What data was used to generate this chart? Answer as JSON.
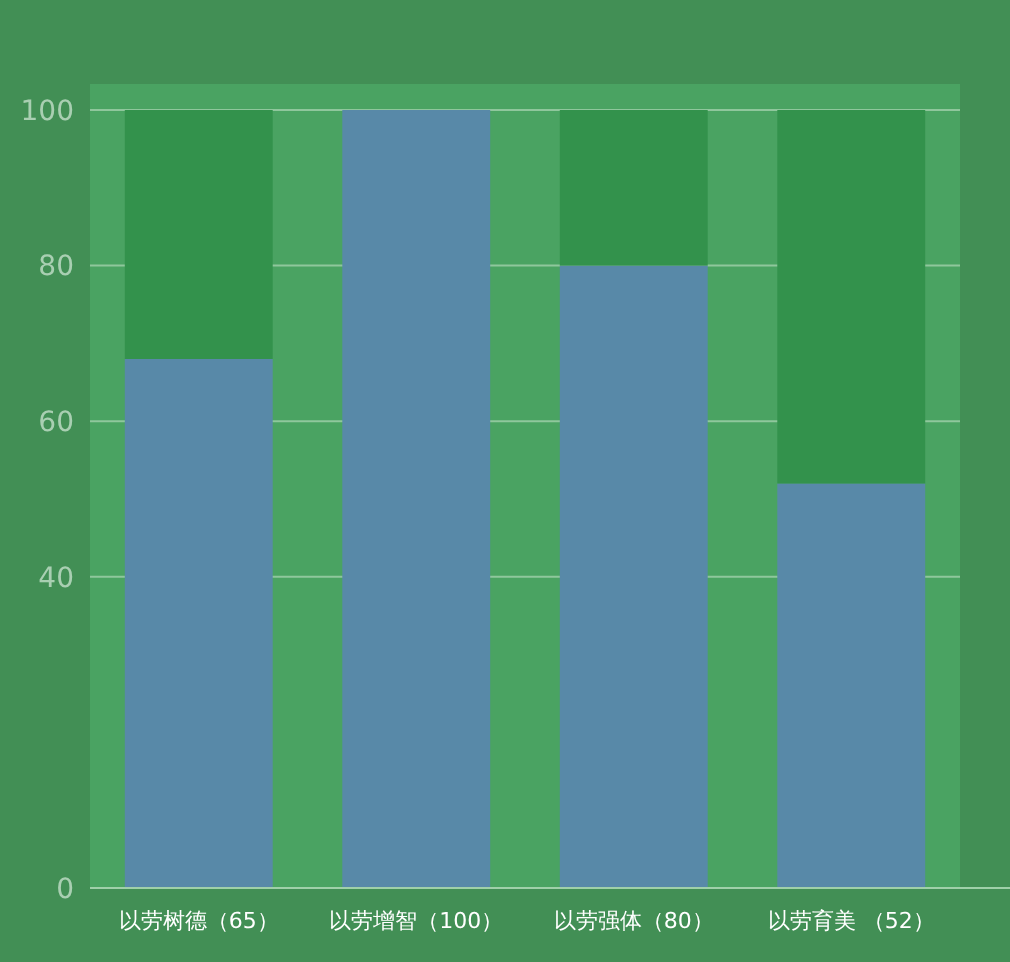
{
  "chart_data": {
    "type": "bar",
    "stacked": true,
    "categories": [
      "以劳树德（65）",
      "以劳增智（100）",
      "以劳强体（80）",
      "以劳育美 （52）"
    ],
    "series": [
      {
        "color": "#5889a8",
        "values": [
          68,
          100,
          80,
          52
        ]
      },
      {
        "color": "#33924c",
        "values": [
          32,
          null,
          20,
          48
        ]
      }
    ],
    "ylim": [
      0,
      100
    ],
    "yticks": [
      0,
      40,
      60,
      80,
      100
    ],
    "grid": "y"
  }
}
